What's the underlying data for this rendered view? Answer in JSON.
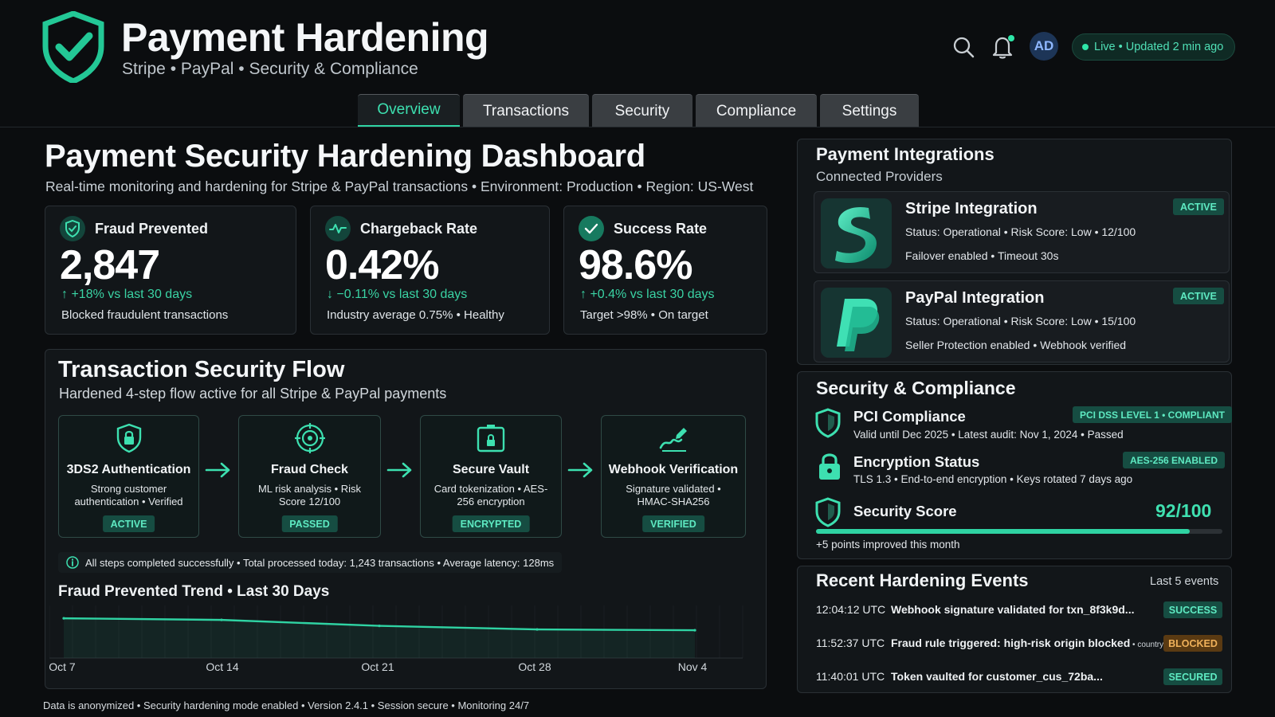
{
  "header": {
    "title": "Payment Hardening",
    "subtitle": "Stripe • PayPal • Security & Compliance",
    "avatar": "AD",
    "live_status": "Live • Updated 2 min ago"
  },
  "tabs": [
    {
      "label": "Overview",
      "active": true
    },
    {
      "label": "Transactions",
      "active": false
    },
    {
      "label": "Security",
      "active": false
    },
    {
      "label": "Compliance",
      "active": false
    },
    {
      "label": "Settings",
      "active": false
    }
  ],
  "main": {
    "title": "Payment Security Hardening Dashboard",
    "subtitle": "Real-time monitoring and hardening for Stripe & PayPal transactions • Environment: Production • Region: US-West"
  },
  "stats": [
    {
      "label": "Fraud Prevented",
      "value": "2,847",
      "delta": "↑ +18% vs last 30 days",
      "note": "Blocked fraudulent transactions",
      "icon": "shield-check-icon"
    },
    {
      "label": "Chargeback Rate",
      "value": "0.42%",
      "delta": "↓ −0.11% vs last 30 days",
      "note": "Industry average 0.75% • Healthy",
      "icon": "pulse-icon"
    },
    {
      "label": "Success Rate",
      "value": "98.6%",
      "delta": "↑ +0.4% vs last 30 days",
      "note": "Target >98% • On target",
      "icon": "check-icon"
    }
  ],
  "flow": {
    "title": "Transaction Security Flow",
    "subtitle": "Hardened 4-step flow active for all Stripe & PayPal payments",
    "steps": [
      {
        "title": "3DS2 Authentication",
        "desc": "Strong customer authentication • Verified",
        "badge": "ACTIVE",
        "icon": "shield-lock-icon"
      },
      {
        "title": "Fraud Check",
        "desc": "ML risk analysis • Risk Score 12/100",
        "badge": "PASSED",
        "icon": "target-icon"
      },
      {
        "title": "Secure Vault",
        "desc": "Card tokenization • AES-256 encryption",
        "badge": "ENCRYPTED",
        "icon": "vault-icon"
      },
      {
        "title": "Webhook Verification",
        "desc": "Signature validated • HMAC-SHA256",
        "badge": "VERIFIED",
        "icon": "signature-icon"
      }
    ],
    "info": "All steps completed successfully • Total processed today: 1,243 transactions • Average latency: 128ms"
  },
  "chart_data": {
    "type": "area",
    "title": "Fraud Prevented Trend • Last 30 Days",
    "categories": [
      "Oct 7",
      "Oct 14",
      "Oct 21",
      "Oct 28",
      "Nov 4"
    ],
    "values": [
      100,
      96,
      81,
      72,
      70
    ],
    "color": "#2fd3a3"
  },
  "footer": "Data is anonymized • Security hardening mode enabled • Version 2.4.1 • Session secure • Monitoring 24/7",
  "integrations": {
    "title": "Payment Integrations",
    "subtitle": "Connected Providers",
    "providers": [
      {
        "name": "Stripe Integration",
        "status": "Status: Operational • Risk Score: Low • 12/100",
        "features": "Failover enabled • Timeout 30s",
        "badge": "ACTIVE",
        "icon": "stripe-logo-icon"
      },
      {
        "name": "PayPal Integration",
        "status": "Status: Operational • Risk Score: Low • 15/100",
        "features": "Seller Protection enabled • Webhook verified",
        "badge": "ACTIVE",
        "icon": "paypal-logo-icon"
      }
    ]
  },
  "security": {
    "title": "Security & Compliance",
    "pci": {
      "name": "PCI Compliance",
      "desc": "Valid until Dec 2025 • Latest audit: Nov 1, 2024 • Passed",
      "badge": "PCI DSS LEVEL 1 • COMPLIANT"
    },
    "encryption": {
      "name": "Encryption Status",
      "desc": "TLS 1.3 • End-to-end encryption • Keys rotated 7 days ago",
      "badge": "AES-256 ENABLED"
    },
    "score": {
      "name": "Security Score",
      "value": "92/100",
      "fraction": 0.92,
      "note": "+5 points improved this month"
    }
  },
  "events": {
    "title": "Recent Hardening Events",
    "range": "Last 5 events",
    "items": [
      {
        "time": "12:04:12 UTC",
        "text": "Webhook signature validated for txn_8f3k9d...",
        "extra": "",
        "badge": "SUCCESS",
        "badge_bg": "#164d42",
        "badge_fg": "#5eeac2"
      },
      {
        "time": "11:52:37 UTC",
        "text": "Fraud rule triggered: high-risk origin blocked",
        "extra": " • country: RU",
        "badge": "BLOCKED",
        "badge_bg": "#5a3a12",
        "badge_fg": "#f0b15a"
      },
      {
        "time": "11:40:01 UTC",
        "text": "Token vaulted for customer_cus_72ba...",
        "extra": "",
        "badge": "SECURED",
        "badge_bg": "#164d42",
        "badge_fg": "#5eeac2"
      }
    ]
  }
}
